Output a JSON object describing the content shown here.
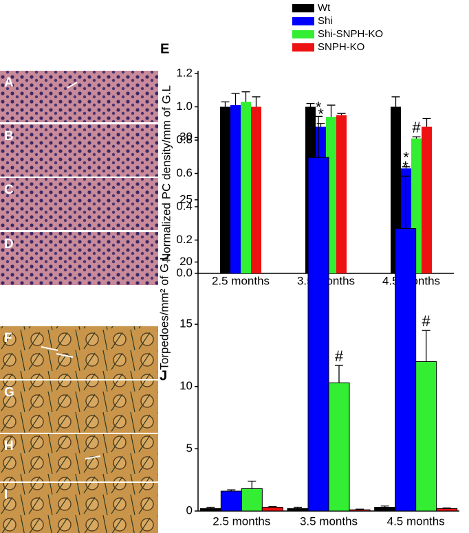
{
  "images": [
    "A",
    "B",
    "C",
    "D",
    "F",
    "G",
    "H",
    "I"
  ],
  "chart_data": [
    {
      "type": "bar",
      "panel_label": "E",
      "y_label": "Normalized PC density/mm of G.L",
      "categories": [
        "2.5 months",
        "3.5 months",
        "4.5 months"
      ],
      "series": [
        {
          "name": "Wt",
          "color": "#000000",
          "values": [
            1.0,
            1.0,
            1.0
          ],
          "errors": [
            0.03,
            0.02,
            0.06
          ]
        },
        {
          "name": "Shi",
          "color": "#0000ff",
          "values": [
            1.01,
            0.88,
            0.63
          ],
          "errors": [
            0.07,
            0.02,
            0.01
          ],
          "annotations": [
            null,
            "*",
            "*"
          ]
        },
        {
          "name": "Shi-SNPH-KO",
          "color": "#33ee33",
          "values": [
            1.03,
            0.94,
            0.81
          ],
          "errors": [
            0.06,
            0.07,
            0.01
          ],
          "annotations": [
            null,
            null,
            "#"
          ]
        },
        {
          "name": "SNPH-KO",
          "color": "#ee1111",
          "values": [
            1.0,
            0.95,
            0.88
          ],
          "errors": [
            0.06,
            0.01,
            0.05
          ]
        }
      ],
      "ylim": [
        0,
        1.2
      ],
      "yticks": [
        {
          "value": 0,
          "label": "0.0"
        },
        0.2,
        0.4,
        0.6,
        0.8,
        {
          "value": 1,
          "label": "1.0"
        },
        1.2
      ]
    },
    {
      "type": "bar",
      "panel_label": "J",
      "y_label": "Torpedoes/mm² of G.L",
      "categories": [
        "2.5 months",
        "3.5 months",
        "4.5 months"
      ],
      "series": [
        {
          "color": "#000000",
          "values": [
            0.2,
            0.2,
            0.3
          ],
          "errors": [
            0.1,
            0.1,
            0.1
          ]
        },
        {
          "color": "#0000ff",
          "values": [
            1.6,
            28.4,
            22.7
          ],
          "errors": [
            0.1,
            3.3,
            4.2
          ],
          "annotations": [
            null,
            "*",
            "*"
          ]
        },
        {
          "color": "#33ee33",
          "values": [
            1.8,
            10.3,
            12.0
          ],
          "errors": [
            0.6,
            1.4,
            2.5
          ],
          "annotations": [
            null,
            "#",
            "#"
          ]
        },
        {
          "color": "#ee1111",
          "values": [
            0.3,
            0.1,
            0.2
          ],
          "errors": [
            0.05,
            0.05,
            0.05
          ]
        }
      ],
      "ylim": [
        0,
        32
      ],
      "yticks": [
        0,
        5,
        10,
        15,
        20,
        25,
        30
      ]
    }
  ]
}
